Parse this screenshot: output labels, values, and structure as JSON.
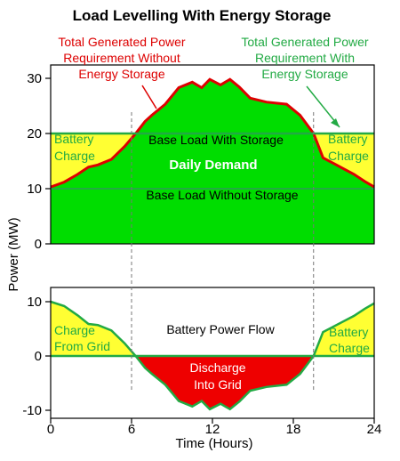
{
  "chart_data": [
    {
      "type": "area",
      "title": "Load Levelling With Energy Storage",
      "xlim": [
        0,
        24
      ],
      "ylim": [
        0,
        30
      ],
      "yticks": [
        "0",
        "10",
        "20",
        "30"
      ],
      "vlines_x": [
        6,
        19.5
      ],
      "annotations": {
        "red_lines": [
          "Total Generated Power",
          "Requirement Without",
          "Energy Storage"
        ],
        "green_lines": [
          "Total Generated Power",
          "Requirement With",
          "Energy Storage"
        ],
        "base_with": "Base Load With Storage",
        "daily": "Daily Demand",
        "base_without": "Base Load Without Storage",
        "charge_left": [
          "Battery",
          "Charge"
        ],
        "charge_right": [
          "Battery",
          "Charge"
        ]
      },
      "series": [
        {
          "label": "Total Generated Power Requirement Without Energy Storage",
          "color": "#dd0000",
          "x": [
            0,
            1,
            2,
            2.8,
            3.5,
            4.5,
            5.5,
            6.3,
            7,
            7.5,
            8.5,
            9.5,
            10.5,
            11.2,
            11.8,
            12.6,
            13.3,
            14,
            14.8,
            16,
            17.5,
            18.5,
            19.5,
            20.2,
            21.5,
            22.5,
            23.3,
            24
          ],
          "y": [
            10.3,
            11.2,
            12.6,
            13.9,
            14.3,
            15.3,
            17.7,
            20,
            22.2,
            23.3,
            25.3,
            28.3,
            29.3,
            28.3,
            29.8,
            28.8,
            29.8,
            28.4,
            26.4,
            25.7,
            25.3,
            23.3,
            20,
            15.6,
            13.9,
            12.6,
            11.3,
            10.3
          ]
        },
        {
          "label": "Total Generated Power Requirement With Energy Storage",
          "color": "#22aa44",
          "y_constant": 20
        },
        {
          "label": "Base Load Without Storage",
          "color": "#22aa44",
          "y_constant": 10
        }
      ]
    },
    {
      "type": "area",
      "title": "Battery Power Flow",
      "xlabel": "Time (Hours)",
      "ylabel": "Power (MW)",
      "xlim": [
        0,
        24
      ],
      "ylim": [
        -11,
        10.5
      ],
      "xticks": [
        "0",
        "6",
        "12",
        "18",
        "24"
      ],
      "yticks": [
        "-10",
        "0",
        "10"
      ],
      "annotations": {
        "charge_grid": [
          "Charge",
          "From Grid"
        ],
        "charge_right": [
          "Battery",
          "Charge"
        ],
        "discharge": [
          "Discharge",
          "Into Grid"
        ]
      },
      "series": [
        {
          "label": "Battery Power Flow",
          "color": "#22aa44",
          "x": [
            0,
            1,
            2,
            2.8,
            3.5,
            4.5,
            5.5,
            6.3,
            7,
            7.5,
            8.5,
            9.5,
            10.5,
            11.2,
            11.8,
            12.6,
            13.3,
            14,
            14.8,
            16,
            17.5,
            18.5,
            19.5,
            20.2,
            21.5,
            22.5,
            23.3,
            24
          ],
          "y": [
            10,
            9.2,
            7.5,
            5.9,
            5.7,
            4.7,
            2.3,
            0,
            -2.2,
            -3.3,
            -5.3,
            -8.3,
            -9.3,
            -8.3,
            -9.8,
            -8.8,
            -9.8,
            -8.4,
            -6.4,
            -5.7,
            -5.3,
            -3.3,
            0,
            4.4,
            6.1,
            7.4,
            8.7,
            9.7
          ]
        }
      ]
    }
  ]
}
